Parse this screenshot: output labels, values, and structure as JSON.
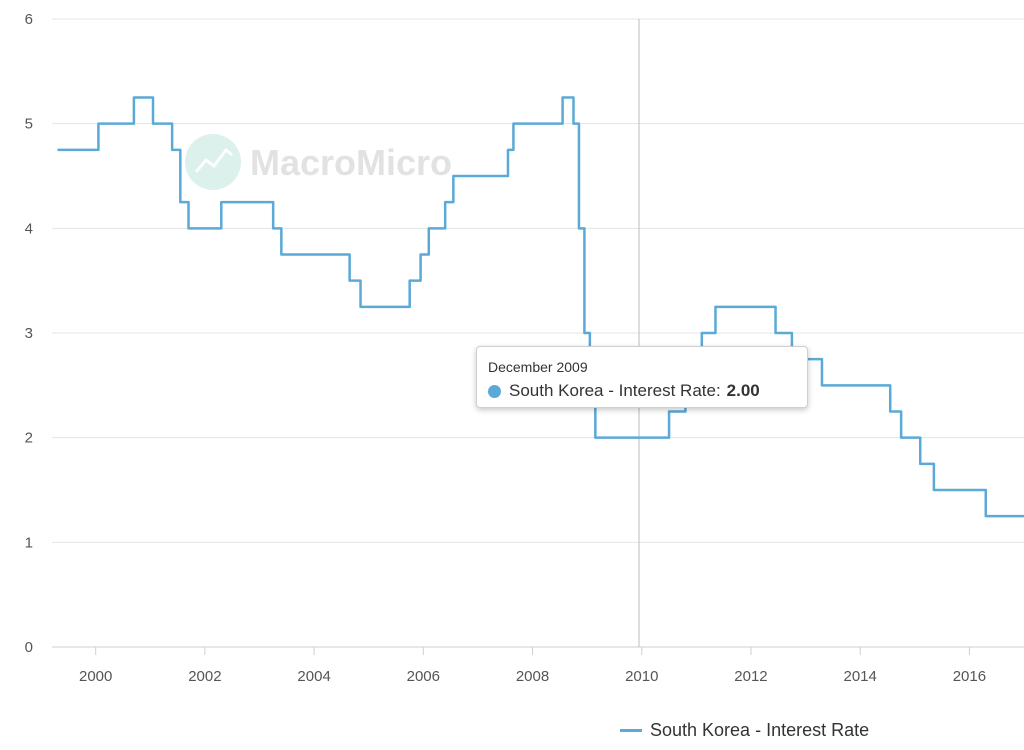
{
  "chart_data": {
    "type": "line",
    "ylim": [
      0,
      6
    ],
    "y_ticks": [
      "0",
      "1",
      "2",
      "3",
      "4",
      "5",
      "6"
    ],
    "xlim": [
      1999.2,
      2017.0
    ],
    "x_ticks": [
      "2000",
      "2002",
      "2004",
      "2006",
      "2008",
      "2010",
      "2012",
      "2014",
      "2016"
    ],
    "grid": true,
    "legend_position": "bottom",
    "series": [
      {
        "name": "South Korea - Interest Rate",
        "color": "#5aa9d6",
        "step": true,
        "points": [
          [
            "1999.3",
            4.75
          ],
          [
            "2000.05",
            5.0
          ],
          [
            "2000.7",
            5.25
          ],
          [
            "2001.05",
            5.0
          ],
          [
            "2001.4",
            4.75
          ],
          [
            "2001.55",
            4.25
          ],
          [
            "2001.7",
            4.0
          ],
          [
            "2002.3",
            4.25
          ],
          [
            "2003.25",
            4.0
          ],
          [
            "2003.4",
            3.75
          ],
          [
            "2004.65",
            3.5
          ],
          [
            "2004.85",
            3.25
          ],
          [
            "2005.75",
            3.5
          ],
          [
            "2005.95",
            3.75
          ],
          [
            "2006.1",
            4.0
          ],
          [
            "2006.4",
            4.25
          ],
          [
            "2006.55",
            4.5
          ],
          [
            "2007.55",
            4.75
          ],
          [
            "2007.65",
            5.0
          ],
          [
            "2008.55",
            5.25
          ],
          [
            "2008.75",
            5.0
          ],
          [
            "2008.85",
            4.0
          ],
          [
            "2008.95",
            3.0
          ],
          [
            "2009.05",
            2.5
          ],
          [
            "2009.15",
            2.0
          ],
          [
            "2010.5",
            2.25
          ],
          [
            "2010.8",
            2.5
          ],
          [
            "2011.1",
            3.0
          ],
          [
            "2011.35",
            3.25
          ],
          [
            "2012.45",
            3.0
          ],
          [
            "2012.75",
            2.75
          ],
          [
            "2013.3",
            2.5
          ],
          [
            "2014.55",
            2.25
          ],
          [
            "2014.75",
            2.0
          ],
          [
            "2015.1",
            1.75
          ],
          [
            "2015.35",
            1.5
          ],
          [
            "2016.3",
            1.25
          ],
          [
            "2017.0",
            1.25
          ]
        ]
      }
    ],
    "crosshair_x": "2009.95"
  },
  "watermark": {
    "text": "MacroMicro"
  },
  "tooltip": {
    "date": "December 2009",
    "series_label": "South Korea - Interest Rate:",
    "value": "2.00",
    "color": "#5aa9d6"
  },
  "legend": {
    "label": "South Korea - Interest Rate",
    "color": "#5aa9d6"
  }
}
